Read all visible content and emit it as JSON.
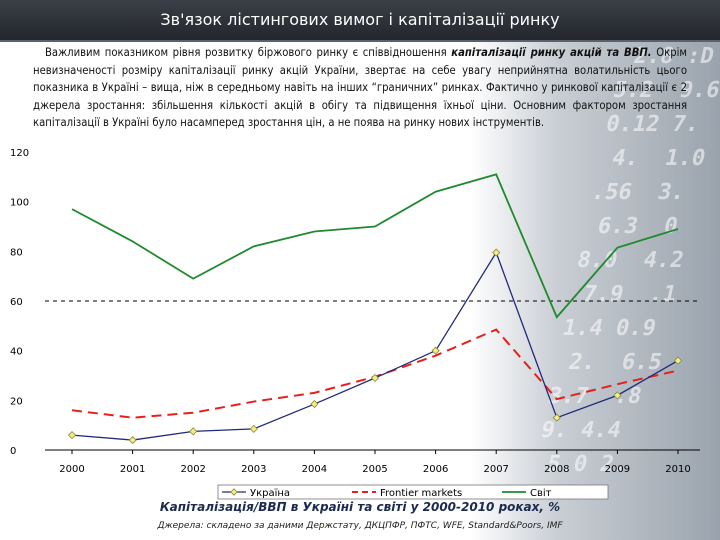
{
  "title": "Зв'язок лістингових вимог і капіталізації ринку",
  "intro": {
    "part1": "Важливим показником рівня розвитку біржового ринку є співвідношення ",
    "emphasis": "капіталізації ринку акцій та ВВП.",
    "part2": " Окрім невизначеності розміру капіталізації ринку акцій України, звертає на себе увагу неприйнятна волатильність цього показника в Україні – вища, ніж в середньому навіть на інших “граничних” ринках. Фактично у ринкової капіталізації є 2 джерела зростання: збільшення кількості акцій в обігу та підвищення їхньої ціни. Основним фактором зростання капіталізації в Україні було насамперед зростання цін, а не поява на ринку нових інструментів."
  },
  "caption": "Капіталізація/ВВП в Україні та світі у 2000-2010 роках, %",
  "source": "Джерела: складено за даними Держстату, ДКЦПФР, ПФТС, WFE, Standard&Poors, IMF",
  "colors": {
    "ukraine": "#1f2a7a",
    "ukraine_marker": "#f2ec8a",
    "frontier": "#e8201c",
    "world": "#1f8a2e",
    "reference": "#000000",
    "title_bg": "#2c3037"
  },
  "chart_data": {
    "type": "line",
    "x": [
      "2000",
      "2001",
      "2002",
      "2003",
      "2004",
      "2005",
      "2006",
      "2007",
      "2008",
      "2009",
      "2010"
    ],
    "ylim": [
      0,
      120
    ],
    "yticks": [
      "0",
      "20",
      "40",
      "60",
      "80",
      "100",
      "120"
    ],
    "reference_line": 60,
    "series": [
      {
        "name": "Україна",
        "style": "solid-markers",
        "values": [
          6,
          4,
          7.5,
          8.5,
          18.5,
          29,
          40,
          79.5,
          13,
          22,
          36
        ]
      },
      {
        "name": "Frontier markets",
        "style": "dashed",
        "values": [
          16,
          13,
          15,
          19.5,
          23,
          29.5,
          38,
          48.5,
          20.5,
          26.5,
          32
        ]
      },
      {
        "name": "Світ",
        "style": "solid",
        "values": [
          97,
          84,
          69,
          82,
          88,
          90,
          104,
          111,
          53.5,
          81.5,
          89
        ]
      }
    ],
    "xlabel": "",
    "ylabel": "",
    "legend_position": "bottom"
  }
}
